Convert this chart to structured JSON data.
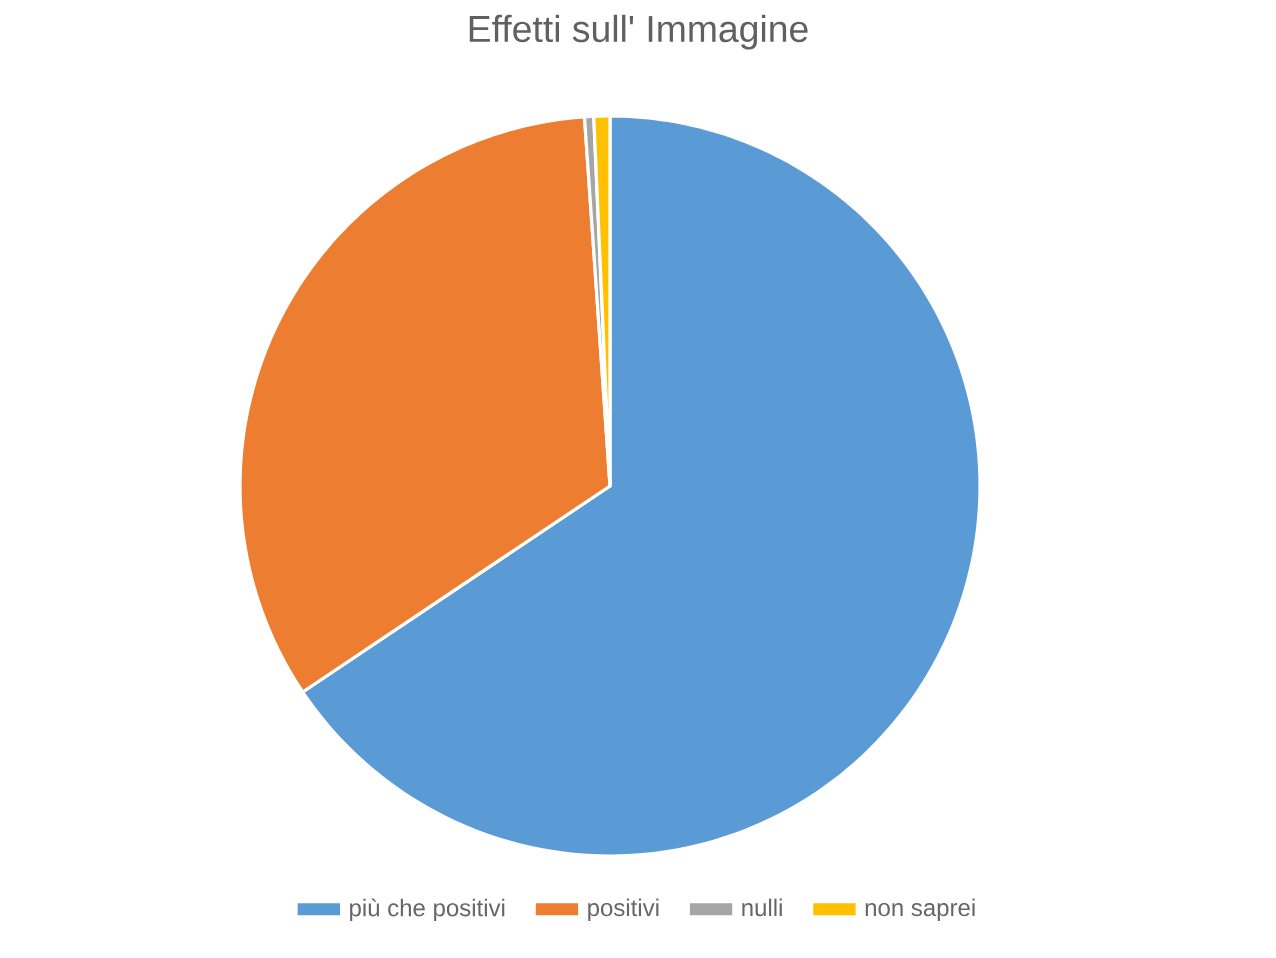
{
  "chart_data": {
    "type": "pie",
    "title": "Effetti sull' Immagine",
    "categories": [
      "più che positivi",
      "positivi",
      "nulli",
      "non saprei"
    ],
    "values": [
      65.6,
      33.3,
      0.4,
      0.7
    ],
    "colors": [
      "#5b9bd5",
      "#ed7d31",
      "#a5a5a5",
      "#ffc000"
    ],
    "legend": "bottom"
  }
}
